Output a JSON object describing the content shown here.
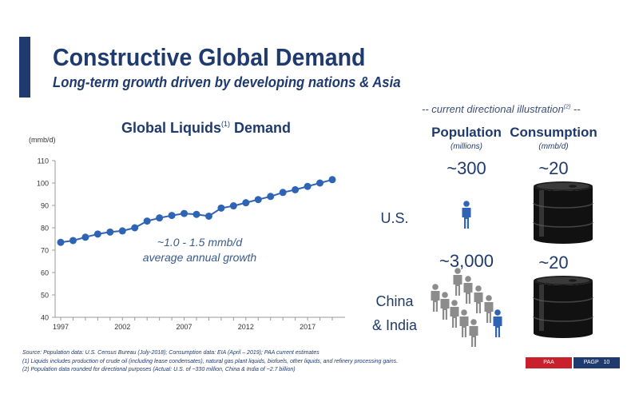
{
  "slide": {
    "title": "Constructive Global Demand",
    "subtitle": "Long-term growth driven by developing nations & Asia"
  },
  "chart": {
    "title_prefix": "Global Liquids",
    "title_sup": "(1)",
    "title_suffix": "Demand",
    "unit": "(mmb/d)",
    "growth_note_line1": "~1.0 - 1.5 mmb/d",
    "growth_note_line2": "average annual growth"
  },
  "chart_data": {
    "type": "line",
    "title": "Global Liquids Demand",
    "ylabel": "(mmb/d)",
    "xlabel": "",
    "ylim": [
      40,
      110
    ],
    "yticks": [
      40,
      50,
      60,
      70,
      80,
      90,
      100,
      110
    ],
    "xticks": [
      "1997",
      "2002",
      "2007",
      "2012",
      "2017"
    ],
    "grid": false,
    "x": [
      1997,
      1998,
      1999,
      2000,
      2001,
      2002,
      2003,
      2004,
      2005,
      2006,
      2007,
      2008,
      2009,
      2010,
      2011,
      2012,
      2013,
      2014,
      2015,
      2016,
      2017,
      2018,
      2019
    ],
    "values": [
      73.5,
      74.3,
      75.8,
      77.2,
      78.1,
      78.6,
      80.0,
      83.0,
      84.4,
      85.5,
      86.4,
      86.0,
      85.2,
      88.8,
      89.8,
      91.2,
      92.6,
      94.0,
      95.8,
      97.0,
      98.5,
      100.0,
      101.5
    ],
    "color": "#2e64b3"
  },
  "illustration": {
    "heading": "-- current directional illustration",
    "heading_sup": "(2)",
    "heading_end": " --",
    "population_label": "Population",
    "population_unit": "(millions)",
    "consumption_label": "Consumption",
    "consumption_unit": "(mmb/d)",
    "us_label": "U.S.",
    "us_population": "~300",
    "us_consumption": "~20",
    "ci_label_line1": "China",
    "ci_label_line2": "& India",
    "ci_population": "~3,000",
    "ci_consumption": "~20"
  },
  "footnotes": {
    "source": "Source: Population data: U.S. Census Bureau (July-2018); Consumption data: EIA (April – 2019); PAA current estimates",
    "note1": "(1) Liquids includes production of crude oil (including lease condensates), natural gas plant liquids, biofuels, other liquids, and refinery processing gains.",
    "note2": "(2) Population data rounded for directional purposes (Actual: U.S. of ~330 million, China & India of ~2.7 billion)"
  },
  "footer": {
    "left_label": "PAA",
    "right_label": "PAGP",
    "page_number": "10"
  },
  "colors": {
    "navy": "#1f3a6e",
    "line_blue": "#2e64b3",
    "person_gray": "#8c8c8c",
    "person_blue": "#2e64b3",
    "red": "#c8202c"
  },
  "icons": {
    "person": "person-icon",
    "barrel": "oil-barrel-icon"
  }
}
